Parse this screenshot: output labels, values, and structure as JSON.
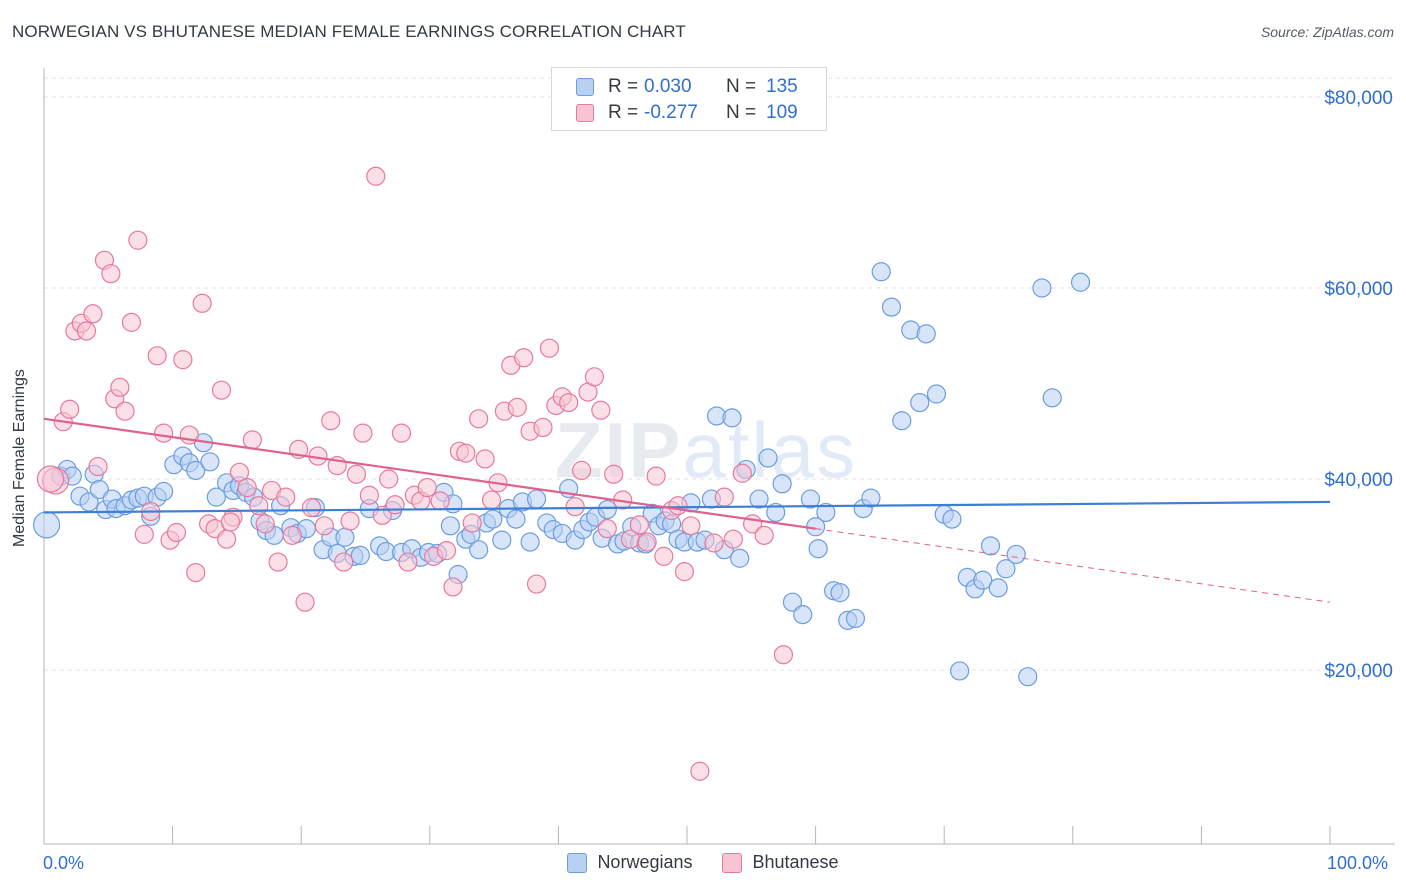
{
  "header": {
    "title": "NORWEGIAN VS BHUTANESE MEDIAN FEMALE EARNINGS CORRELATION CHART",
    "source": "Source: ZipAtlas.com"
  },
  "watermark": {
    "zip": "ZIP",
    "atlas": "atlas"
  },
  "legend_top": {
    "rows": [
      {
        "r_label": "R =",
        "r_value": "0.030",
        "n_label": "N =",
        "n_value": "135",
        "color": "#6b9de0",
        "fill": "#b8d0f2"
      },
      {
        "r_label": "R =",
        "r_value": "-0.277",
        "n_label": "N =",
        "n_value": "109",
        "color": "#e8799e",
        "fill": "#f8c4d4"
      }
    ]
  },
  "legend_bottom": [
    {
      "label": "Norwegians",
      "color": "#6b9de0",
      "fill": "#b8d0f2"
    },
    {
      "label": "Bhutanese",
      "color": "#e8799e",
      "fill": "#f8c4d4"
    }
  ],
  "chart_data": {
    "type": "scatter",
    "title": "NORWEGIAN VS BHUTANESE MEDIAN FEMALE EARNINGS CORRELATION CHART",
    "xlabel": "",
    "ylabel": "Median Female Earnings",
    "xlim": [
      0,
      100
    ],
    "ylim": [
      0,
      82000
    ],
    "x_tick_labels": [
      "0.0%",
      "100.0%"
    ],
    "y_ticks": [
      20000,
      40000,
      60000,
      80000
    ],
    "y_tick_labels": [
      "$20,000",
      "$40,000",
      "$60,000",
      "$80,000"
    ],
    "grid": true,
    "series": [
      {
        "name": "Norwegians",
        "color": "#3d7fd6",
        "fill": "#b8d0f2",
        "stroke": "#6b9de0",
        "trend": {
          "x0": 0,
          "y0": 36500,
          "x1": 100,
          "y1": 37600,
          "dashed_from": null
        },
        "points": [
          [
            0.2,
            35200
          ],
          [
            1.3,
            40300
          ],
          [
            1.8,
            41000
          ],
          [
            2.2,
            40300
          ],
          [
            2.8,
            38200
          ],
          [
            3.5,
            37600
          ],
          [
            3.9,
            40500
          ],
          [
            4.3,
            38900
          ],
          [
            4.8,
            36800
          ],
          [
            5.3,
            37900
          ],
          [
            5.6,
            36900
          ],
          [
            6.3,
            37200
          ],
          [
            6.8,
            37800
          ],
          [
            7.3,
            38000
          ],
          [
            7.8,
            38200
          ],
          [
            8.3,
            36100
          ],
          [
            8.8,
            38100
          ],
          [
            9.3,
            38700
          ],
          [
            10.1,
            41500
          ],
          [
            10.8,
            42400
          ],
          [
            11.3,
            41700
          ],
          [
            11.8,
            40900
          ],
          [
            12.4,
            43800
          ],
          [
            12.9,
            41800
          ],
          [
            13.4,
            38100
          ],
          [
            14.2,
            39600
          ],
          [
            14.7,
            38800
          ],
          [
            15.2,
            39300
          ],
          [
            15.7,
            38600
          ],
          [
            16.3,
            38100
          ],
          [
            16.8,
            35600
          ],
          [
            17.3,
            34600
          ],
          [
            17.9,
            34100
          ],
          [
            18.4,
            37200
          ],
          [
            19.2,
            34900
          ],
          [
            19.7,
            34300
          ],
          [
            20.4,
            34800
          ],
          [
            21.1,
            37000
          ],
          [
            21.7,
            32600
          ],
          [
            22.3,
            33900
          ],
          [
            22.8,
            32200
          ],
          [
            23.4,
            33900
          ],
          [
            24.1,
            31900
          ],
          [
            24.6,
            32000
          ],
          [
            25.3,
            36900
          ],
          [
            26.1,
            33000
          ],
          [
            26.6,
            32400
          ],
          [
            27.1,
            36700
          ],
          [
            27.8,
            32300
          ],
          [
            28.6,
            32700
          ],
          [
            29.3,
            31800
          ],
          [
            29.9,
            32300
          ],
          [
            30.6,
            32200
          ],
          [
            31.1,
            38600
          ],
          [
            31.8,
            37400
          ],
          [
            32.2,
            30000
          ],
          [
            32.8,
            33700
          ],
          [
            33.2,
            34200
          ],
          [
            33.8,
            32600
          ],
          [
            34.4,
            35400
          ],
          [
            34.9,
            35800
          ],
          [
            35.6,
            33600
          ],
          [
            36.1,
            36900
          ],
          [
            36.7,
            35800
          ],
          [
            37.2,
            37600
          ],
          [
            37.8,
            33400
          ],
          [
            38.3,
            37900
          ],
          [
            39.1,
            35400
          ],
          [
            39.6,
            34700
          ],
          [
            40.3,
            34300
          ],
          [
            40.8,
            39000
          ],
          [
            41.3,
            33600
          ],
          [
            41.9,
            34700
          ],
          [
            42.4,
            35500
          ],
          [
            42.9,
            36000
          ],
          [
            43.4,
            33800
          ],
          [
            43.8,
            36800
          ],
          [
            44.6,
            33200
          ],
          [
            45.1,
            33500
          ],
          [
            45.7,
            35000
          ],
          [
            46.3,
            33300
          ],
          [
            46.8,
            33200
          ],
          [
            47.3,
            36400
          ],
          [
            47.8,
            35100
          ],
          [
            48.3,
            35600
          ],
          [
            48.8,
            35300
          ],
          [
            49.3,
            33700
          ],
          [
            49.8,
            33400
          ],
          [
            50.3,
            37500
          ],
          [
            50.8,
            33400
          ],
          [
            51.4,
            33600
          ],
          [
            51.9,
            37900
          ],
          [
            52.3,
            46600
          ],
          [
            52.9,
            32600
          ],
          [
            53.5,
            46400
          ],
          [
            54.1,
            31700
          ],
          [
            54.6,
            41000
          ],
          [
            55.6,
            37900
          ],
          [
            56.3,
            42200
          ],
          [
            56.9,
            36500
          ],
          [
            57.4,
            39500
          ],
          [
            58.2,
            27100
          ],
          [
            59.0,
            25800
          ],
          [
            59.6,
            37900
          ],
          [
            60.2,
            32700
          ],
          [
            60.8,
            36500
          ],
          [
            61.4,
            28300
          ],
          [
            61.9,
            28100
          ],
          [
            62.5,
            25200
          ],
          [
            63.1,
            25400
          ],
          [
            63.7,
            36900
          ],
          [
            64.3,
            38000
          ],
          [
            65.1,
            61700
          ],
          [
            65.9,
            58000
          ],
          [
            66.7,
            46100
          ],
          [
            67.4,
            55600
          ],
          [
            68.1,
            48000
          ],
          [
            68.6,
            55200
          ],
          [
            69.4,
            48900
          ],
          [
            70.0,
            36300
          ],
          [
            70.6,
            35800
          ],
          [
            71.2,
            19900
          ],
          [
            71.8,
            29700
          ],
          [
            72.4,
            28500
          ],
          [
            73.0,
            29400
          ],
          [
            73.6,
            33000
          ],
          [
            74.2,
            28600
          ],
          [
            74.8,
            30600
          ],
          [
            75.6,
            32100
          ],
          [
            76.5,
            19300
          ],
          [
            77.6,
            60000
          ],
          [
            78.4,
            48500
          ],
          [
            80.6,
            60600
          ],
          [
            60.0,
            35000
          ],
          [
            31.6,
            35100
          ]
        ]
      },
      {
        "name": "Bhutanese",
        "color": "#e0608e",
        "fill": "#f8c4d4",
        "stroke": "#e8799e",
        "trend": {
          "x0": 0,
          "y0": 46300,
          "x1": 60,
          "y1": 34800,
          "dashed_to": 100,
          "dashed_y": 27100
        },
        "points": [
          [
            0.9,
            39800
          ],
          [
            1.5,
            46000
          ],
          [
            2.0,
            47300
          ],
          [
            2.4,
            55500
          ],
          [
            2.9,
            56300
          ],
          [
            3.3,
            55500
          ],
          [
            3.8,
            57300
          ],
          [
            4.2,
            41300
          ],
          [
            4.7,
            62900
          ],
          [
            5.2,
            61500
          ],
          [
            5.5,
            48400
          ],
          [
            5.9,
            49600
          ],
          [
            6.3,
            47100
          ],
          [
            6.8,
            56400
          ],
          [
            7.3,
            65000
          ],
          [
            7.8,
            34200
          ],
          [
            8.3,
            36600
          ],
          [
            8.8,
            52900
          ],
          [
            9.3,
            44800
          ],
          [
            9.8,
            33600
          ],
          [
            10.3,
            34400
          ],
          [
            10.8,
            52500
          ],
          [
            11.3,
            44600
          ],
          [
            11.8,
            30200
          ],
          [
            12.3,
            58400
          ],
          [
            12.8,
            35300
          ],
          [
            13.3,
            34800
          ],
          [
            13.8,
            49300
          ],
          [
            14.2,
            33700
          ],
          [
            14.7,
            36000
          ],
          [
            15.2,
            40700
          ],
          [
            15.8,
            39100
          ],
          [
            16.2,
            44100
          ],
          [
            16.7,
            37200
          ],
          [
            17.2,
            35300
          ],
          [
            17.7,
            38800
          ],
          [
            18.2,
            31300
          ],
          [
            18.8,
            38100
          ],
          [
            19.3,
            34100
          ],
          [
            19.8,
            43100
          ],
          [
            20.3,
            27100
          ],
          [
            20.8,
            37000
          ],
          [
            21.3,
            42400
          ],
          [
            21.8,
            35100
          ],
          [
            22.3,
            46100
          ],
          [
            22.8,
            41400
          ],
          [
            23.3,
            31300
          ],
          [
            23.8,
            35600
          ],
          [
            24.3,
            40500
          ],
          [
            24.8,
            44800
          ],
          [
            25.3,
            38300
          ],
          [
            25.8,
            71700
          ],
          [
            26.3,
            36200
          ],
          [
            26.8,
            40000
          ],
          [
            27.3,
            37300
          ],
          [
            27.8,
            44800
          ],
          [
            28.3,
            31300
          ],
          [
            28.8,
            38300
          ],
          [
            29.3,
            37700
          ],
          [
            29.8,
            39100
          ],
          [
            30.3,
            31900
          ],
          [
            30.8,
            37700
          ],
          [
            31.3,
            32500
          ],
          [
            31.8,
            28700
          ],
          [
            32.3,
            42900
          ],
          [
            32.8,
            42700
          ],
          [
            33.3,
            35400
          ],
          [
            33.8,
            46300
          ],
          [
            34.3,
            42100
          ],
          [
            34.8,
            37800
          ],
          [
            35.3,
            39600
          ],
          [
            35.8,
            47100
          ],
          [
            36.3,
            51900
          ],
          [
            36.8,
            47500
          ],
          [
            37.3,
            52700
          ],
          [
            37.8,
            45000
          ],
          [
            38.3,
            29000
          ],
          [
            38.8,
            45400
          ],
          [
            39.3,
            53700
          ],
          [
            39.8,
            47700
          ],
          [
            40.3,
            48600
          ],
          [
            40.8,
            48000
          ],
          [
            41.3,
            37100
          ],
          [
            41.8,
            40900
          ],
          [
            42.3,
            49100
          ],
          [
            42.8,
            50700
          ],
          [
            43.3,
            47200
          ],
          [
            43.8,
            34800
          ],
          [
            44.3,
            40500
          ],
          [
            45.0,
            37800
          ],
          [
            45.6,
            33700
          ],
          [
            46.3,
            35200
          ],
          [
            46.9,
            33400
          ],
          [
            47.6,
            40300
          ],
          [
            48.2,
            31900
          ],
          [
            48.8,
            36700
          ],
          [
            49.3,
            37200
          ],
          [
            49.8,
            30300
          ],
          [
            50.3,
            35100
          ],
          [
            51.0,
            9400
          ],
          [
            52.1,
            33300
          ],
          [
            52.9,
            38100
          ],
          [
            53.6,
            33700
          ],
          [
            54.3,
            40600
          ],
          [
            55.1,
            35300
          ],
          [
            56.0,
            34100
          ],
          [
            57.5,
            21600
          ],
          [
            0.5,
            40000
          ],
          [
            14.5,
            35500
          ]
        ]
      }
    ]
  }
}
